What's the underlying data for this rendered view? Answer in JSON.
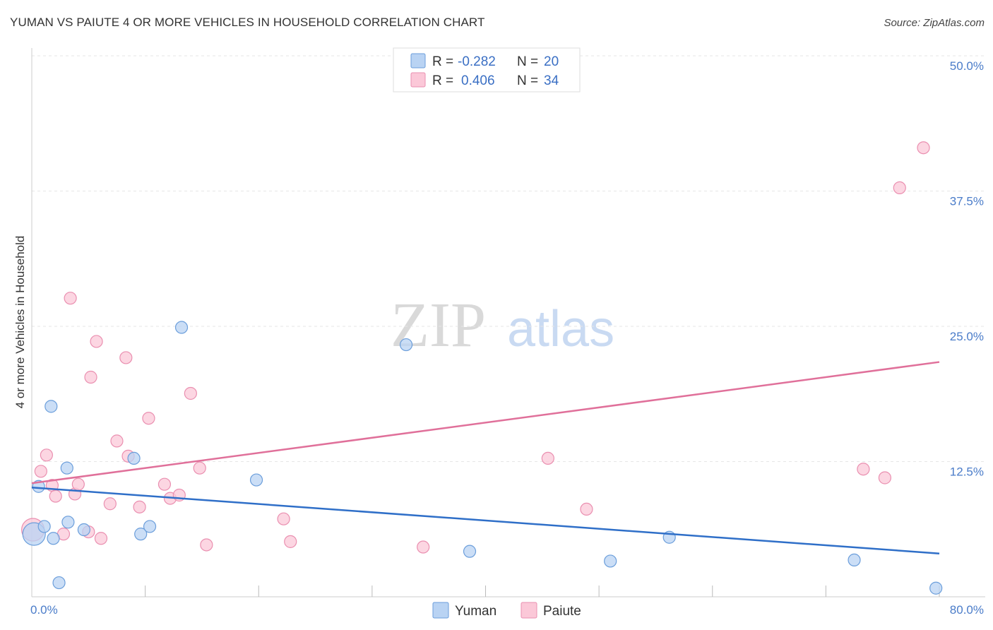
{
  "title": "YUMAN VS PAIUTE 4 OR MORE VEHICLES IN HOUSEHOLD CORRELATION CHART",
  "source": "Source: ZipAtlas.com",
  "watermark": {
    "zip": "ZIP",
    "atlas": "atlas"
  },
  "legend_stats": [
    {
      "r_label": "R = ",
      "r_value": "-0.282",
      "n_label": "N = ",
      "n_value": "20"
    },
    {
      "r_label": "R = ",
      "r_value": "0.406",
      "n_label": "N = ",
      "n_value": "34"
    }
  ],
  "colors": {
    "yuman_fill": "#b9d3f3",
    "yuman_stroke": "#6b9edb",
    "yuman_line": "#2f6fc8",
    "paiute_fill": "#fbc8d8",
    "paiute_stroke": "#ea8fb0",
    "paiute_line": "#e0709a",
    "grid": "#e6e6e6",
    "tick_label": "#4a7cc9"
  },
  "chart_data": {
    "type": "scatter",
    "title": "YUMAN VS PAIUTE 4 OR MORE VEHICLES IN HOUSEHOLD CORRELATION CHART",
    "xlabel": "",
    "ylabel": "4 or more Vehicles in Household",
    "xlim": [
      0,
      80
    ],
    "ylim": [
      0,
      50
    ],
    "x_tick_labels": [
      "0.0%",
      "80.0%"
    ],
    "y_ticks": [
      12.5,
      25.0,
      37.5,
      50.0
    ],
    "y_tick_labels": [
      "12.5%",
      "25.0%",
      "37.5%",
      "50.0%"
    ],
    "legend": [
      "Yuman",
      "Paiute"
    ],
    "legend_position": "bottom-center",
    "series": [
      {
        "name": "Yuman",
        "r": -0.282,
        "n": 20,
        "trend": {
          "x": [
            0,
            80
          ],
          "y": [
            10.1,
            4.0
          ]
        },
        "points": [
          {
            "x": 0.2,
            "y": 5.8,
            "big": true
          },
          {
            "x": 0.6,
            "y": 10.2
          },
          {
            "x": 1.1,
            "y": 6.5
          },
          {
            "x": 1.7,
            "y": 17.6
          },
          {
            "x": 1.9,
            "y": 5.4
          },
          {
            "x": 2.4,
            "y": 1.3
          },
          {
            "x": 3.1,
            "y": 11.9
          },
          {
            "x": 3.2,
            "y": 6.9
          },
          {
            "x": 4.6,
            "y": 6.2
          },
          {
            "x": 9.0,
            "y": 12.8
          },
          {
            "x": 9.6,
            "y": 5.8
          },
          {
            "x": 10.4,
            "y": 6.5
          },
          {
            "x": 13.2,
            "y": 24.9
          },
          {
            "x": 19.8,
            "y": 10.8
          },
          {
            "x": 33.0,
            "y": 23.3
          },
          {
            "x": 38.6,
            "y": 4.2
          },
          {
            "x": 51.0,
            "y": 3.3
          },
          {
            "x": 56.2,
            "y": 5.5
          },
          {
            "x": 72.5,
            "y": 3.4
          },
          {
            "x": 79.7,
            "y": 0.8
          }
        ]
      },
      {
        "name": "Paiute",
        "r": 0.406,
        "n": 34,
        "trend": {
          "x": [
            0,
            80
          ],
          "y": [
            10.5,
            21.7
          ]
        },
        "points": [
          {
            "x": 0.1,
            "y": 6.2,
            "big": true
          },
          {
            "x": 0.8,
            "y": 11.6
          },
          {
            "x": 1.3,
            "y": 13.1
          },
          {
            "x": 1.8,
            "y": 10.3
          },
          {
            "x": 2.1,
            "y": 9.3
          },
          {
            "x": 2.8,
            "y": 5.8
          },
          {
            "x": 3.4,
            "y": 27.6
          },
          {
            "x": 3.8,
            "y": 9.5
          },
          {
            "x": 4.1,
            "y": 10.4
          },
          {
            "x": 5.0,
            "y": 6.0
          },
          {
            "x": 5.2,
            "y": 20.3
          },
          {
            "x": 5.7,
            "y": 23.6
          },
          {
            "x": 6.1,
            "y": 5.4
          },
          {
            "x": 6.9,
            "y": 8.6
          },
          {
            "x": 7.5,
            "y": 14.4
          },
          {
            "x": 8.3,
            "y": 22.1
          },
          {
            "x": 8.5,
            "y": 13.0
          },
          {
            "x": 9.5,
            "y": 8.3
          },
          {
            "x": 10.3,
            "y": 16.5
          },
          {
            "x": 11.7,
            "y": 10.4
          },
          {
            "x": 12.2,
            "y": 9.1
          },
          {
            "x": 13.0,
            "y": 9.4
          },
          {
            "x": 14.0,
            "y": 18.8
          },
          {
            "x": 14.8,
            "y": 11.9
          },
          {
            "x": 15.4,
            "y": 4.8
          },
          {
            "x": 22.2,
            "y": 7.2
          },
          {
            "x": 22.8,
            "y": 5.1
          },
          {
            "x": 34.5,
            "y": 4.6
          },
          {
            "x": 45.5,
            "y": 12.8
          },
          {
            "x": 48.9,
            "y": 8.1
          },
          {
            "x": 73.3,
            "y": 11.8
          },
          {
            "x": 75.2,
            "y": 11.0
          },
          {
            "x": 76.5,
            "y": 37.8
          },
          {
            "x": 78.6,
            "y": 41.5
          }
        ]
      }
    ]
  }
}
